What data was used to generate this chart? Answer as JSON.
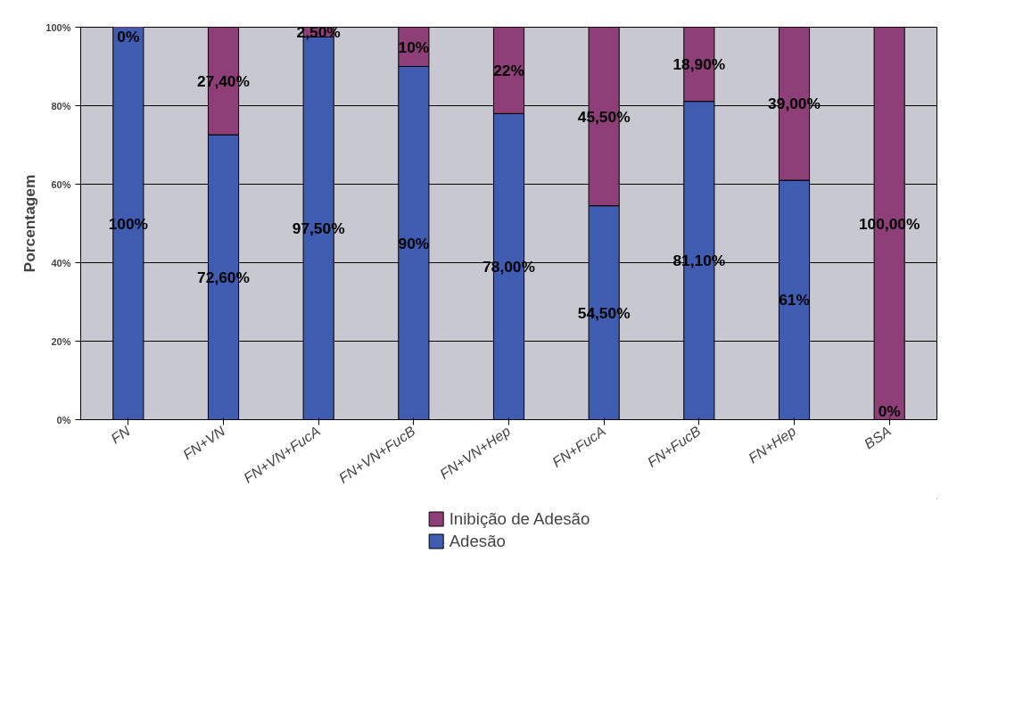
{
  "chart_data": {
    "type": "bar",
    "stacked": true,
    "ylabel": "Porcentagem",
    "categories": [
      "FN",
      "FN+VN",
      "FN+VN+FucA",
      "FN+VN+FucB",
      "FN+VN+Hep",
      "FN+FucA",
      "FN+FucB",
      "FN+Hep",
      "BSA"
    ],
    "series": [
      {
        "name": "Adesão",
        "color": "#3f5cb0",
        "values": [
          100,
          72.6,
          97.5,
          90,
          78,
          54.5,
          81.1,
          61,
          0
        ],
        "value_labels": [
          "100%",
          "72,60%",
          "97,50%",
          "90%",
          "78,00%",
          "54,50%",
          "81,10%",
          "61%",
          "0%"
        ]
      },
      {
        "name": "Inibição de Adesão",
        "color": "#8e3f78",
        "values": [
          0,
          27.4,
          2.5,
          10,
          22,
          45.5,
          18.9,
          39,
          100
        ],
        "value_labels": [
          "0%",
          "27,40%",
          "2,50%",
          "10%",
          "22%",
          "45,50%",
          "18,90%",
          "39,00%",
          "100,00%"
        ]
      }
    ],
    "ylim": [
      0,
      100
    ],
    "yticks": [
      {
        "value": 0,
        "label": "0%"
      },
      {
        "value": 20,
        "label": "20%"
      },
      {
        "value": 40,
        "label": "40%"
      },
      {
        "value": 60,
        "label": "60%"
      },
      {
        "value": 80,
        "label": "80%"
      },
      {
        "value": 100,
        "label": "100%"
      }
    ],
    "grid": "y",
    "legend": "bottom"
  }
}
